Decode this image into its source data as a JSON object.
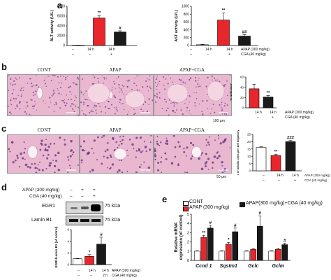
{
  "panel_letters": {
    "a": "a",
    "b": "b",
    "c": "c",
    "d": "d",
    "e": "e"
  },
  "panel_a": {
    "treatment_rows": {
      "apap": {
        "label": "APAP (300 mg/kg)",
        "values": [
          "–",
          "14 h",
          "14 h"
        ]
      },
      "cga": {
        "label": "CGA (40 mg/kg)",
        "values": [
          "–",
          "–",
          "+"
        ]
      }
    }
  },
  "panel_b": {
    "titles": [
      "CONT",
      "APAP",
      "APAP+CGA"
    ],
    "scale_label": "100 μm",
    "treatment_rows": {
      "apap": {
        "label": "APAP (300 mg/kg)",
        "values": [
          "14 h",
          "14 h"
        ]
      },
      "cga": {
        "label": "CGA (40 mg/kg)",
        "values": [
          "–",
          "+"
        ]
      }
    }
  },
  "panel_c": {
    "titles": [
      "CONT",
      "APAP",
      "APAP+CGA"
    ],
    "scale_label": "50 μm",
    "treatment_rows": {
      "apap": {
        "label": "APAP (300 mg/kg)",
        "values": [
          "–",
          "14 h",
          "14 h"
        ]
      },
      "cga": {
        "label": "CGA (40 mg/kg)",
        "values": [
          "–",
          "–",
          "+"
        ]
      }
    }
  },
  "panel_d": {
    "top_rows": {
      "apap": {
        "label": "APAP (300 mg/kg)",
        "values": [
          "–",
          "+",
          "+"
        ]
      },
      "cga": {
        "label": "CGA (40 mg/kg)",
        "values": [
          "–",
          "–",
          "+"
        ]
      }
    },
    "blot_labels": {
      "egr1": "EGR1",
      "lamin": "Lamin B1",
      "kda": "75 kDa",
      "kda2": "75 kDa"
    },
    "treatment_rows": {
      "apap": {
        "label": "APAP (300 mg/kg)",
        "values": [
          "–",
          "14 h",
          "14 h"
        ]
      },
      "cga": {
        "label": "CGA (40 mg/kg)",
        "values": [
          "–",
          "–",
          "2 h"
        ]
      }
    }
  },
  "panel_e": {
    "legend": [
      "CONT",
      "APAP (300 mg/kg)",
      "APAP(300 mg/kg)+CGA (40 mg/kg)"
    ]
  },
  "colors": {
    "cont": "#ffffff",
    "apap": "#e8262b",
    "apap_cga": "#1a1a1a",
    "histo": "#e9b7cf"
  },
  "chart_data": [
    {
      "id": "a_alt",
      "type": "bar",
      "categories": [
        "CONT",
        "APAP",
        "APAP+CGA"
      ],
      "values": [
        40,
        5600,
        2750
      ],
      "errors": [
        20,
        550,
        250
      ],
      "ylabel": "ALT activity (U/L)",
      "ylim": [
        0,
        8000
      ],
      "yticks": [
        "0",
        "2000",
        "4000",
        "6000",
        "8000"
      ],
      "annotations": [
        "",
        "**",
        "#"
      ]
    },
    {
      "id": "a_ast",
      "type": "bar",
      "categories": [
        "CONT",
        "APAP",
        "APAP+CGA"
      ],
      "values": [
        20,
        650,
        240
      ],
      "errors": [
        10,
        180,
        40
      ],
      "ylabel": "AST activity (U/L)",
      "ylim": [
        0,
        1000
      ],
      "yticks": [
        "0",
        "200",
        "400",
        "600",
        "800",
        "1000"
      ],
      "annotations": [
        "",
        "**",
        "##"
      ]
    },
    {
      "id": "b_necrosis",
      "type": "bar",
      "categories": [
        "APAP",
        "APAP+CGA"
      ],
      "values": [
        37,
        21
      ],
      "errors": [
        9,
        3
      ],
      "ylabel": "% Necrosis",
      "ylim": [
        0,
        60
      ],
      "yticks": [
        "0",
        "20",
        "40",
        "60"
      ],
      "annotations": [
        "",
        "**"
      ]
    },
    {
      "id": "c_mitotic",
      "type": "bar",
      "categories": [
        "CONT",
        "APAP",
        "APAP+CGA"
      ],
      "values": [
        16,
        10.5,
        20
      ],
      "errors": [
        0.5,
        0.8,
        0.8
      ],
      "ylabel": "Number of mitotic cells per 100 hepatocytes (%)",
      "ylim": [
        0,
        25
      ],
      "yticks": [
        "0",
        "5",
        "10",
        "15",
        "20",
        "25"
      ],
      "annotations": [
        "",
        "**",
        "###"
      ]
    },
    {
      "id": "d_egr1",
      "type": "bar",
      "categories": [
        "CONT",
        "APAP",
        "APAP+CGA"
      ],
      "values": [
        1.0,
        1.4,
        3.5
      ],
      "errors": [
        0.05,
        0.3,
        1.2
      ],
      "ylabel": "EGR1/Lamin B1 (of control)",
      "ylim": [
        0,
        6
      ],
      "yticks": [
        "0",
        "2",
        "4",
        "6"
      ],
      "annotations": [
        "",
        "*",
        "#"
      ]
    },
    {
      "id": "e_mrna",
      "type": "bar",
      "categories": [
        "Ccnd 1",
        "Sqstm1",
        "Gclc",
        "Gclm"
      ],
      "series": [
        {
          "name": "CONT",
          "values": [
            1.0,
            1.0,
            1.0,
            1.0
          ],
          "errors": [
            0.05,
            0.05,
            0.05,
            0.05
          ]
        },
        {
          "name": "APAP (300 mg/kg)",
          "values": [
            2.5,
            1.75,
            1.2,
            1.2
          ],
          "errors": [
            0.2,
            0.2,
            0.1,
            0.1
          ]
        },
        {
          "name": "APAP(300 mg/kg)+CGA (40 mg/kg)",
          "values": [
            3.5,
            3.1,
            3.7,
            1.7
          ],
          "errors": [
            0.3,
            0.4,
            1.1,
            0.15
          ]
        }
      ],
      "ylabel": "Relative mRNA expression (of control)",
      "ylim": [
        0,
        5
      ],
      "yticks": [
        "0",
        "1",
        "2",
        "3",
        "4",
        "5"
      ],
      "annotations": [
        [
          "",
          "**",
          "#"
        ],
        [
          "",
          "*",
          "#"
        ],
        [
          "",
          "",
          "#"
        ],
        [
          "",
          "",
          "#"
        ]
      ]
    }
  ]
}
